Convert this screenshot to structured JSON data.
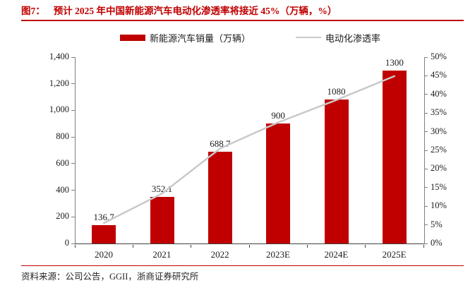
{
  "title": {
    "prefix": "图7：",
    "text": "预计 2025 年中国新能源汽车电动化渗透率将接近 45%（万辆，%）"
  },
  "legend": {
    "bar_label": "新能源汽车销量（万辆）",
    "line_label": "电动化渗透率"
  },
  "source": "资料来源：公司公告，GGII，浙商证券研究所",
  "colors": {
    "bar": "#c00000",
    "line": "#c9c9c9",
    "accent_rule": "#c00000",
    "axis": "#808080"
  },
  "chart_data": {
    "type": "bar",
    "subtype": "bar+line-dual-axis",
    "title": "预计 2025 年中国新能源汽车电动化渗透率将接近 45%（万辆，%）",
    "categories": [
      "2020",
      "2021",
      "2022",
      "2023E",
      "2024E",
      "2025E"
    ],
    "series": [
      {
        "name": "新能源汽车销量（万辆）",
        "type": "bar",
        "axis": "left",
        "values": [
          136.7,
          352.1,
          688.7,
          900,
          1080,
          1300
        ],
        "labels": [
          "136.7",
          "352.1",
          "688.7",
          "900",
          "1080",
          "1300"
        ]
      },
      {
        "name": "电动化渗透率",
        "type": "line",
        "axis": "right",
        "values": [
          5.5,
          13.4,
          25.5,
          32.5,
          38.5,
          44.9
        ],
        "note": "percent, estimated from gridlines (no data labels shown)"
      }
    ],
    "left_axis": {
      "min": 0,
      "max": 1400,
      "ticks": [
        "0",
        "200",
        "400",
        "600",
        "800",
        "1,000",
        "1,200",
        "1,400"
      ]
    },
    "right_axis": {
      "min": 0,
      "max": 50,
      "ticks": [
        "0%",
        "5%",
        "10%",
        "15%",
        "20%",
        "25%",
        "30%",
        "35%",
        "40%",
        "45%",
        "50%"
      ]
    },
    "grid": false,
    "legend_position": "top-center"
  }
}
